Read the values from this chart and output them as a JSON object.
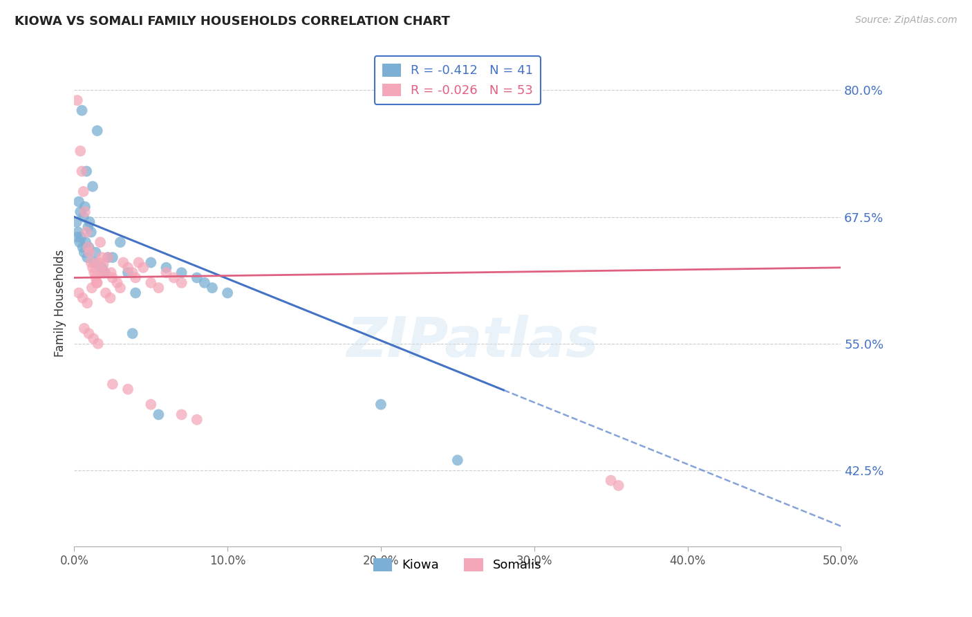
{
  "title": "KIOWA VS SOMALI FAMILY HOUSEHOLDS CORRELATION CHART",
  "source": "Source: ZipAtlas.com",
  "xlabel": "",
  "ylabel": "Family Households",
  "xlim": [
    0.0,
    50.0
  ],
  "ylim": [
    35.0,
    83.0
  ],
  "xticks": [
    0.0,
    10.0,
    20.0,
    30.0,
    40.0,
    50.0
  ],
  "xtick_labels": [
    "0.0%",
    "10.0%",
    "20.0%",
    "30.0%",
    "40.0%",
    "50.0%"
  ],
  "yticks": [
    42.5,
    55.0,
    67.5,
    80.0
  ],
  "grid_color": "#cccccc",
  "background_color": "#ffffff",
  "kiowa_color": "#7bafd4",
  "somali_color": "#f4a7b9",
  "kiowa_line_color": "#4472c4",
  "somali_line_color": "#e06080",
  "kiowa_R": -0.412,
  "kiowa_N": 41,
  "somali_R": -0.026,
  "somali_N": 53,
  "tick_label_color": "#4472c4",
  "title_color": "#222222",
  "legend_box_color": "#4472c4",
  "kiowa_solid_end": 28.0,
  "kiowa_line_x0": 0.0,
  "kiowa_line_y0": 67.5,
  "kiowa_line_x1": 50.0,
  "kiowa_line_y1": 37.0,
  "somali_line_x0": 0.0,
  "somali_line_y0": 61.5,
  "somali_line_x1": 50.0,
  "somali_line_y1": 62.5,
  "kiowa_x": [
    0.5,
    1.5,
    0.8,
    1.2,
    0.3,
    0.7,
    0.4,
    0.6,
    1.0,
    0.9,
    1.1,
    0.2,
    0.35,
    0.55,
    0.65,
    0.85,
    1.3,
    1.8,
    2.0,
    2.5,
    3.0,
    3.5,
    4.0,
    5.0,
    6.0,
    7.0,
    8.0,
    8.5,
    9.0,
    10.0,
    0.15,
    0.25,
    0.45,
    0.75,
    0.95,
    1.4,
    2.2,
    3.8,
    5.5,
    20.0,
    25.0
  ],
  "kiowa_y": [
    78.0,
    76.0,
    72.0,
    70.5,
    69.0,
    68.5,
    68.0,
    67.5,
    67.0,
    66.5,
    66.0,
    65.5,
    65.0,
    64.5,
    64.0,
    63.5,
    63.0,
    62.5,
    62.0,
    63.5,
    65.0,
    62.0,
    60.0,
    63.0,
    62.5,
    62.0,
    61.5,
    61.0,
    60.5,
    60.0,
    67.0,
    66.0,
    65.5,
    65.0,
    64.5,
    64.0,
    63.5,
    56.0,
    48.0,
    49.0,
    43.5
  ],
  "somali_x": [
    0.2,
    0.4,
    0.5,
    0.6,
    0.7,
    0.8,
    0.9,
    1.0,
    1.1,
    1.2,
    1.3,
    1.4,
    1.5,
    1.6,
    1.7,
    1.8,
    1.9,
    2.0,
    2.2,
    2.4,
    2.5,
    2.8,
    3.0,
    3.2,
    3.5,
    3.8,
    4.0,
    4.2,
    4.5,
    5.0,
    5.5,
    6.0,
    6.5,
    7.0,
    0.3,
    0.55,
    0.85,
    1.15,
    1.45,
    1.75,
    2.05,
    2.35,
    0.65,
    0.95,
    1.25,
    1.55,
    2.5,
    3.5,
    5.0,
    7.0,
    8.0,
    35.0,
    35.5
  ],
  "somali_y": [
    79.0,
    74.0,
    72.0,
    70.0,
    68.0,
    66.0,
    64.5,
    64.0,
    63.0,
    62.5,
    62.0,
    61.5,
    61.0,
    63.0,
    65.0,
    63.5,
    62.8,
    62.0,
    63.5,
    62.0,
    61.5,
    61.0,
    60.5,
    63.0,
    62.5,
    62.0,
    61.5,
    63.0,
    62.5,
    61.0,
    60.5,
    62.0,
    61.5,
    61.0,
    60.0,
    59.5,
    59.0,
    60.5,
    61.0,
    62.0,
    60.0,
    59.5,
    56.5,
    56.0,
    55.5,
    55.0,
    51.0,
    50.5,
    49.0,
    48.0,
    47.5,
    41.5,
    41.0
  ]
}
